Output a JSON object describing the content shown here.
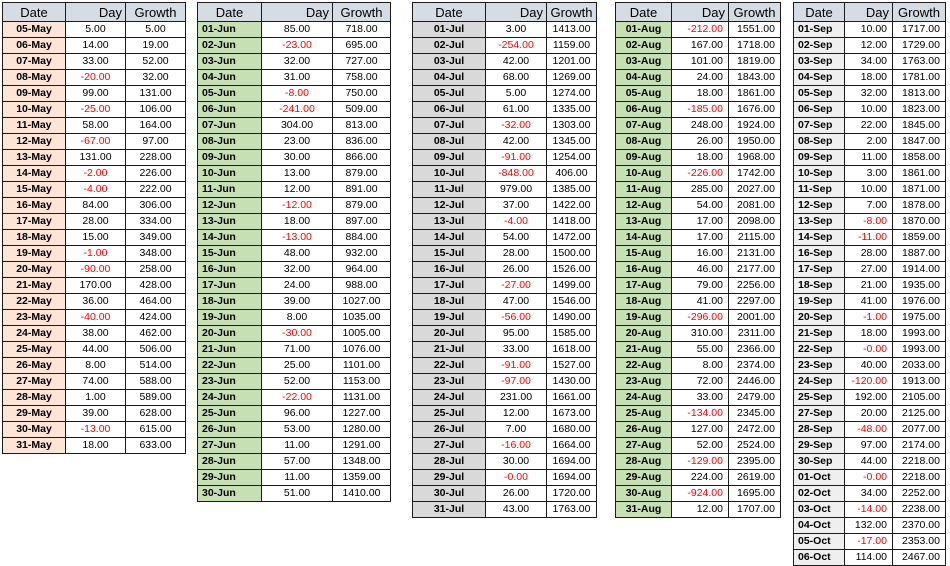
{
  "styles": {
    "header_bg": "#D6DCE4",
    "negative_text": "#FF0000",
    "positive_text": "#000000",
    "border_color": "#1B1B1B",
    "page_bg": "#FFFFFF"
  },
  "tables": [
    {
      "month": "May",
      "date_bg": "#FCE4D6",
      "headers": [
        "Date",
        "Day",
        "Growth"
      ],
      "rows": [
        [
          "05-May",
          "5.00",
          "5.00"
        ],
        [
          "06-May",
          "14.00",
          "19.00"
        ],
        [
          "07-May",
          "33.00",
          "52.00"
        ],
        [
          "08-May",
          "-20.00",
          "32.00"
        ],
        [
          "09-May",
          "99.00",
          "131.00"
        ],
        [
          "10-May",
          "-25.00",
          "106.00"
        ],
        [
          "11-May",
          "58.00",
          "164.00"
        ],
        [
          "12-May",
          "-67.00",
          "97.00"
        ],
        [
          "13-May",
          "131.00",
          "228.00"
        ],
        [
          "14-May",
          "-2.00",
          "226.00"
        ],
        [
          "15-May",
          "-4.00",
          "222.00"
        ],
        [
          "16-May",
          "84.00",
          "306.00"
        ],
        [
          "17-May",
          "28.00",
          "334.00"
        ],
        [
          "18-May",
          "15.00",
          "349.00"
        ],
        [
          "19-May",
          "-1.00",
          "348.00"
        ],
        [
          "20-May",
          "-90.00",
          "258.00"
        ],
        [
          "21-May",
          "170.00",
          "428.00"
        ],
        [
          "22-May",
          "36.00",
          "464.00"
        ],
        [
          "23-May",
          "-40.00",
          "424.00"
        ],
        [
          "24-May",
          "38.00",
          "462.00"
        ],
        [
          "25-May",
          "44.00",
          "506.00"
        ],
        [
          "26-May",
          "8.00",
          "514.00"
        ],
        [
          "27-May",
          "74.00",
          "588.00"
        ],
        [
          "28-May",
          "1.00",
          "589.00"
        ],
        [
          "29-May",
          "39.00",
          "628.00"
        ],
        [
          "30-May",
          "-13.00",
          "615.00"
        ],
        [
          "31-May",
          "18.00",
          "633.00"
        ]
      ]
    },
    {
      "month": "June",
      "date_bg": "#C6E0B4",
      "headers": [
        "Date",
        "Day",
        "Growth"
      ],
      "rows": [
        [
          "01-Jun",
          "85.00",
          "718.00"
        ],
        [
          "02-Jun",
          "-23.00",
          "695.00"
        ],
        [
          "03-Jun",
          "32.00",
          "727.00"
        ],
        [
          "04-Jun",
          "31.00",
          "758.00"
        ],
        [
          "05-Jun",
          "-8.00",
          "750.00"
        ],
        [
          "06-Jun",
          "-241.00",
          "509.00"
        ],
        [
          "07-Jun",
          "304.00",
          "813.00"
        ],
        [
          "08-Jun",
          "23.00",
          "836.00"
        ],
        [
          "09-Jun",
          "30.00",
          "866.00"
        ],
        [
          "10-Jun",
          "13.00",
          "879.00"
        ],
        [
          "11-Jun",
          "12.00",
          "891.00"
        ],
        [
          "12-Jun",
          "-12.00",
          "879.00"
        ],
        [
          "13-Jun",
          "18.00",
          "897.00"
        ],
        [
          "14-Jun",
          "-13.00",
          "884.00"
        ],
        [
          "15-Jun",
          "48.00",
          "932.00"
        ],
        [
          "16-Jun",
          "32.00",
          "964.00"
        ],
        [
          "17-Jun",
          "24.00",
          "988.00"
        ],
        [
          "18-Jun",
          "39.00",
          "1027.00"
        ],
        [
          "19-Jun",
          "8.00",
          "1035.00"
        ],
        [
          "20-Jun",
          "-30.00",
          "1005.00"
        ],
        [
          "21-Jun",
          "71.00",
          "1076.00"
        ],
        [
          "22-Jun",
          "25.00",
          "1101.00"
        ],
        [
          "23-Jun",
          "52.00",
          "1153.00"
        ],
        [
          "24-Jun",
          "-22.00",
          "1131.00"
        ],
        [
          "25-Jun",
          "96.00",
          "1227.00"
        ],
        [
          "26-Jun",
          "53.00",
          "1280.00"
        ],
        [
          "27-Jun",
          "11.00",
          "1291.00"
        ],
        [
          "28-Jun",
          "57.00",
          "1348.00"
        ],
        [
          "29-Jun",
          "11.00",
          "1359.00"
        ],
        [
          "30-Jun",
          "51.00",
          "1410.00"
        ]
      ]
    },
    {
      "month": "July",
      "date_bg": "#D9D9D9",
      "headers": [
        "Date",
        "Day",
        "Growth"
      ],
      "rows": [
        [
          "01-Jul",
          "3.00",
          "1413.00"
        ],
        [
          "02-Jul",
          "-254.00",
          "1159.00"
        ],
        [
          "03-Jul",
          "42.00",
          "1201.00"
        ],
        [
          "04-Jul",
          "68.00",
          "1269.00"
        ],
        [
          "05-Jul",
          "5.00",
          "1274.00"
        ],
        [
          "06-Jul",
          "61.00",
          "1335.00"
        ],
        [
          "07-Jul",
          "-32.00",
          "1303.00"
        ],
        [
          "08-Jul",
          "42.00",
          "1345.00"
        ],
        [
          "09-Jul",
          "-91.00",
          "1254.00"
        ],
        [
          "10-Jul",
          "-848.00",
          "406.00"
        ],
        [
          "11-Jul",
          "979.00",
          "1385.00"
        ],
        [
          "12-Jul",
          "37.00",
          "1422.00"
        ],
        [
          "13-Jul",
          "-4.00",
          "1418.00"
        ],
        [
          "14-Jul",
          "54.00",
          "1472.00"
        ],
        [
          "15-Jul",
          "28.00",
          "1500.00"
        ],
        [
          "16-Jul",
          "26.00",
          "1526.00"
        ],
        [
          "17-Jul",
          "-27.00",
          "1499.00"
        ],
        [
          "18-Jul",
          "47.00",
          "1546.00"
        ],
        [
          "19-Jul",
          "-56.00",
          "1490.00"
        ],
        [
          "20-Jul",
          "95.00",
          "1585.00"
        ],
        [
          "21-Jul",
          "33.00",
          "1618.00"
        ],
        [
          "22-Jul",
          "-91.00",
          "1527.00"
        ],
        [
          "23-Jul",
          "-97.00",
          "1430.00"
        ],
        [
          "24-Jul",
          "231.00",
          "1661.00"
        ],
        [
          "25-Jul",
          "12.00",
          "1673.00"
        ],
        [
          "26-Jul",
          "7.00",
          "1680.00"
        ],
        [
          "27-Jul",
          "-16.00",
          "1664.00"
        ],
        [
          "28-Jul",
          "30.00",
          "1694.00"
        ],
        [
          "29-Jul",
          "-0.00",
          "1694.00"
        ],
        [
          "30-Jul",
          "26.00",
          "1720.00"
        ],
        [
          "31-Jul",
          "43.00",
          "1763.00"
        ]
      ]
    },
    {
      "month": "August",
      "date_bg": "#C6E0B4",
      "headers": [
        "Date",
        "Day",
        "Growth"
      ],
      "rows": [
        [
          "01-Aug",
          "-212.00",
          "1551.00"
        ],
        [
          "02-Aug",
          "167.00",
          "1718.00"
        ],
        [
          "03-Aug",
          "101.00",
          "1819.00"
        ],
        [
          "04-Aug",
          "24.00",
          "1843.00"
        ],
        [
          "05-Aug",
          "18.00",
          "1861.00"
        ],
        [
          "06-Aug",
          "-185.00",
          "1676.00"
        ],
        [
          "07-Aug",
          "248.00",
          "1924.00"
        ],
        [
          "08-Aug",
          "26.00",
          "1950.00"
        ],
        [
          "09-Aug",
          "18.00",
          "1968.00"
        ],
        [
          "10-Aug",
          "-226.00",
          "1742.00"
        ],
        [
          "11-Aug",
          "285.00",
          "2027.00"
        ],
        [
          "12-Aug",
          "54.00",
          "2081.00"
        ],
        [
          "13-Aug",
          "17.00",
          "2098.00"
        ],
        [
          "14-Aug",
          "17.00",
          "2115.00"
        ],
        [
          "15-Aug",
          "16.00",
          "2131.00"
        ],
        [
          "16-Aug",
          "46.00",
          "2177.00"
        ],
        [
          "17-Aug",
          "79.00",
          "2256.00"
        ],
        [
          "18-Aug",
          "41.00",
          "2297.00"
        ],
        [
          "19-Aug",
          "-296.00",
          "2001.00"
        ],
        [
          "20-Aug",
          "310.00",
          "2311.00"
        ],
        [
          "21-Aug",
          "55.00",
          "2366.00"
        ],
        [
          "22-Aug",
          "8.00",
          "2374.00"
        ],
        [
          "23-Aug",
          "72.00",
          "2446.00"
        ],
        [
          "24-Aug",
          "33.00",
          "2479.00"
        ],
        [
          "25-Aug",
          "-134.00",
          "2345.00"
        ],
        [
          "26-Aug",
          "127.00",
          "2472.00"
        ],
        [
          "27-Aug",
          "52.00",
          "2524.00"
        ],
        [
          "28-Aug",
          "-129.00",
          "2395.00"
        ],
        [
          "29-Aug",
          "224.00",
          "2619.00"
        ],
        [
          "30-Aug",
          "-924.00",
          "1695.00"
        ],
        [
          "31-Aug",
          "12.00",
          "1707.00"
        ]
      ]
    },
    {
      "month": "September",
      "date_bg": "#EFEFEF",
      "headers": [
        "Date",
        "Day",
        "Growth"
      ],
      "rows": [
        [
          "01-Sep",
          "10.00",
          "1717.00"
        ],
        [
          "02-Sep",
          "12.00",
          "1729.00"
        ],
        [
          "03-Sep",
          "34.00",
          "1763.00"
        ],
        [
          "04-Sep",
          "18.00",
          "1781.00"
        ],
        [
          "05-Sep",
          "32.00",
          "1813.00"
        ],
        [
          "06-Sep",
          "10.00",
          "1823.00"
        ],
        [
          "07-Sep",
          "22.00",
          "1845.00"
        ],
        [
          "08-Sep",
          "2.00",
          "1847.00"
        ],
        [
          "09-Sep",
          "11.00",
          "1858.00"
        ],
        [
          "10-Sep",
          "3.00",
          "1861.00"
        ],
        [
          "11-Sep",
          "10.00",
          "1871.00"
        ],
        [
          "12-Sep",
          "7.00",
          "1878.00"
        ],
        [
          "13-Sep",
          "-8.00",
          "1870.00"
        ],
        [
          "14-Sep",
          "-11.00",
          "1859.00"
        ],
        [
          "16-Sep",
          "28.00",
          "1887.00"
        ],
        [
          "17-Sep",
          "27.00",
          "1914.00"
        ],
        [
          "18-Sep",
          "21.00",
          "1935.00"
        ],
        [
          "19-Sep",
          "41.00",
          "1976.00"
        ],
        [
          "20-Sep",
          "-1.00",
          "1975.00"
        ],
        [
          "21-Sep",
          "18.00",
          "1993.00"
        ],
        [
          "22-Sep",
          "-0.00",
          "1993.00"
        ],
        [
          "23-Sep",
          "40.00",
          "2033.00"
        ],
        [
          "24-Sep",
          "-120.00",
          "1913.00"
        ],
        [
          "25-Sep",
          "192.00",
          "2105.00"
        ],
        [
          "27-Sep",
          "20.00",
          "2125.00"
        ],
        [
          "28-Sep",
          "-48.00",
          "2077.00"
        ],
        [
          "29-Sep",
          "97.00",
          "2174.00"
        ],
        [
          "30-Sep",
          "44.00",
          "2218.00"
        ],
        [
          "01-Oct",
          "-0.00",
          "2218.00"
        ],
        [
          "02-Oct",
          "34.00",
          "2252.00"
        ],
        [
          "03-Oct",
          "-14.00",
          "2238.00"
        ],
        [
          "04-Oct",
          "132.00",
          "2370.00"
        ],
        [
          "05-Oct",
          "-17.00",
          "2353.00"
        ],
        [
          "06-Oct",
          "114.00",
          "2467.00"
        ]
      ]
    }
  ]
}
